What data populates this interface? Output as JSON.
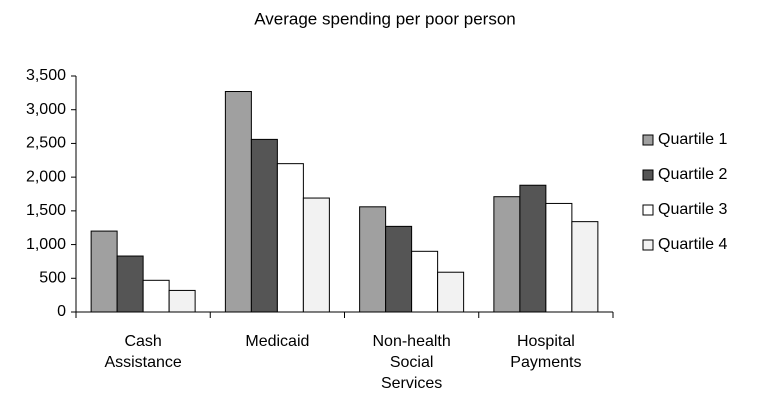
{
  "chart_data": {
    "type": "bar",
    "title": "Average spending per poor person",
    "categories": [
      "Cash Assistance",
      "Medicaid",
      "Non-health Social Services",
      "Hospital Payments"
    ],
    "series": [
      {
        "name": "Quartile 1",
        "color": "#a0a0a0",
        "values": [
          1200,
          3270,
          1560,
          1710
        ]
      },
      {
        "name": "Quartile 2",
        "color": "#555555",
        "values": [
          830,
          2560,
          1270,
          1880
        ]
      },
      {
        "name": "Quartile 3",
        "color": "#ffffff",
        "values": [
          470,
          2200,
          900,
          1610
        ]
      },
      {
        "name": "Quartile 4",
        "color": "#f2f2f2",
        "values": [
          320,
          1690,
          590,
          1340
        ]
      }
    ],
    "ylim": [
      0,
      3500
    ],
    "yticks": [
      0,
      500,
      {
        "value": 1000,
        "label": "1,000"
      },
      {
        "value": 1500,
        "label": "1,500"
      },
      {
        "value": 2000,
        "label": "2,000"
      },
      {
        "value": 2500,
        "label": "2,500"
      },
      {
        "value": 3000,
        "label": "3,000"
      },
      {
        "value": 3500,
        "label": "3,500"
      }
    ],
    "legend": "right"
  }
}
